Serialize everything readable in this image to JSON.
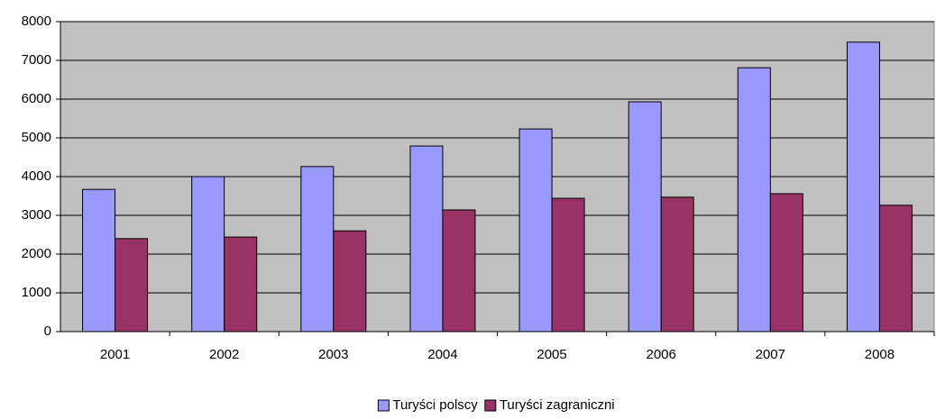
{
  "chart_data": {
    "type": "bar",
    "categories": [
      "2001",
      "2002",
      "2003",
      "2004",
      "2005",
      "2006",
      "2007",
      "2008"
    ],
    "series": [
      {
        "name": "Turyści polscy",
        "color": "#9999ff",
        "values": [
          3670,
          4000,
          4260,
          4790,
          5230,
          5930,
          6810,
          7470
        ]
      },
      {
        "name": "Turyści zagraniczni",
        "color": "#993366",
        "values": [
          2400,
          2440,
          2600,
          3140,
          3440,
          3470,
          3560,
          3260
        ]
      }
    ],
    "ylim": [
      0,
      8000
    ],
    "yticks": [
      0,
      1000,
      2000,
      3000,
      4000,
      5000,
      6000,
      7000,
      8000
    ],
    "grid": true,
    "legend": "bottom"
  }
}
